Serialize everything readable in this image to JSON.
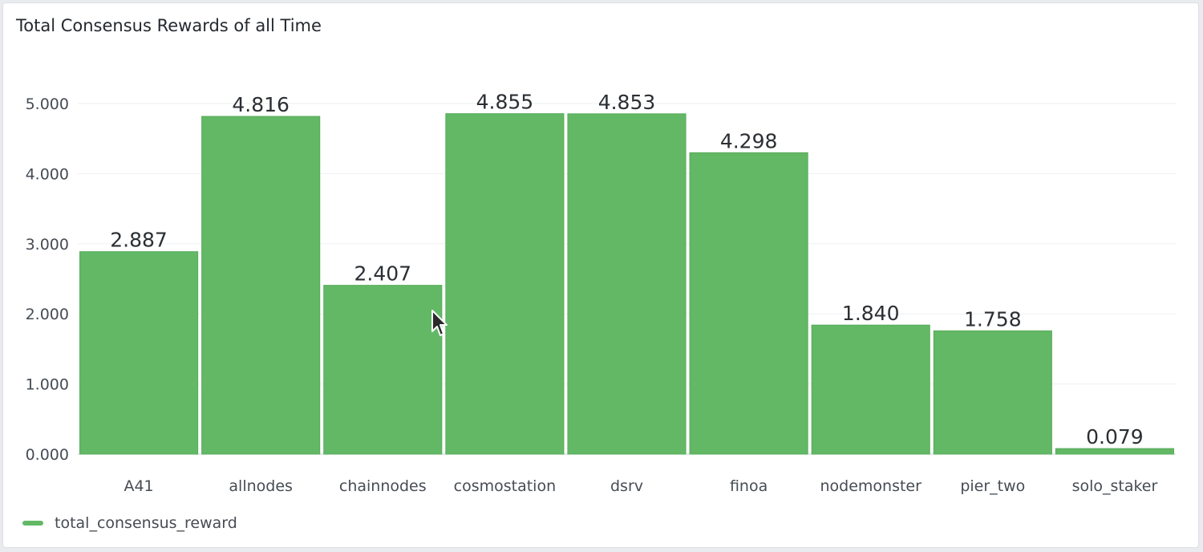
{
  "panel": {
    "title": "Total Consensus Rewards of all Time"
  },
  "legend": {
    "label": "total_consensus_reward"
  },
  "colors": {
    "bar": "#63b866",
    "bar_stroke": "#56ab59",
    "grid": "#eef0f2",
    "axis": "#d0d3d8"
  },
  "chart_data": {
    "type": "bar",
    "categories": [
      "A41",
      "allnodes",
      "chainnodes",
      "cosmostation",
      "dsrv",
      "finoa",
      "nodemonster",
      "pier_two",
      "solo_staker"
    ],
    "series": [
      {
        "name": "total_consensus_reward",
        "values": [
          2.887,
          4.816,
          2.407,
          4.855,
          4.853,
          4.298,
          1.84,
          1.758,
          0.079
        ]
      }
    ],
    "value_labels": [
      "2.887",
      "4.816",
      "2.407",
      "4.855",
      "4.853",
      "4.298",
      "1.840",
      "1.758",
      "0.079"
    ],
    "y_ticks": [
      0,
      1,
      2,
      3,
      4,
      5
    ],
    "y_tick_labels": [
      "0.000",
      "1.000",
      "2.000",
      "3.000",
      "4.000",
      "5.000"
    ],
    "ylim": [
      0,
      5
    ],
    "grid": true,
    "legend_position": "bottom-left"
  },
  "icons": {
    "cursor": "mouse-pointer-icon"
  }
}
